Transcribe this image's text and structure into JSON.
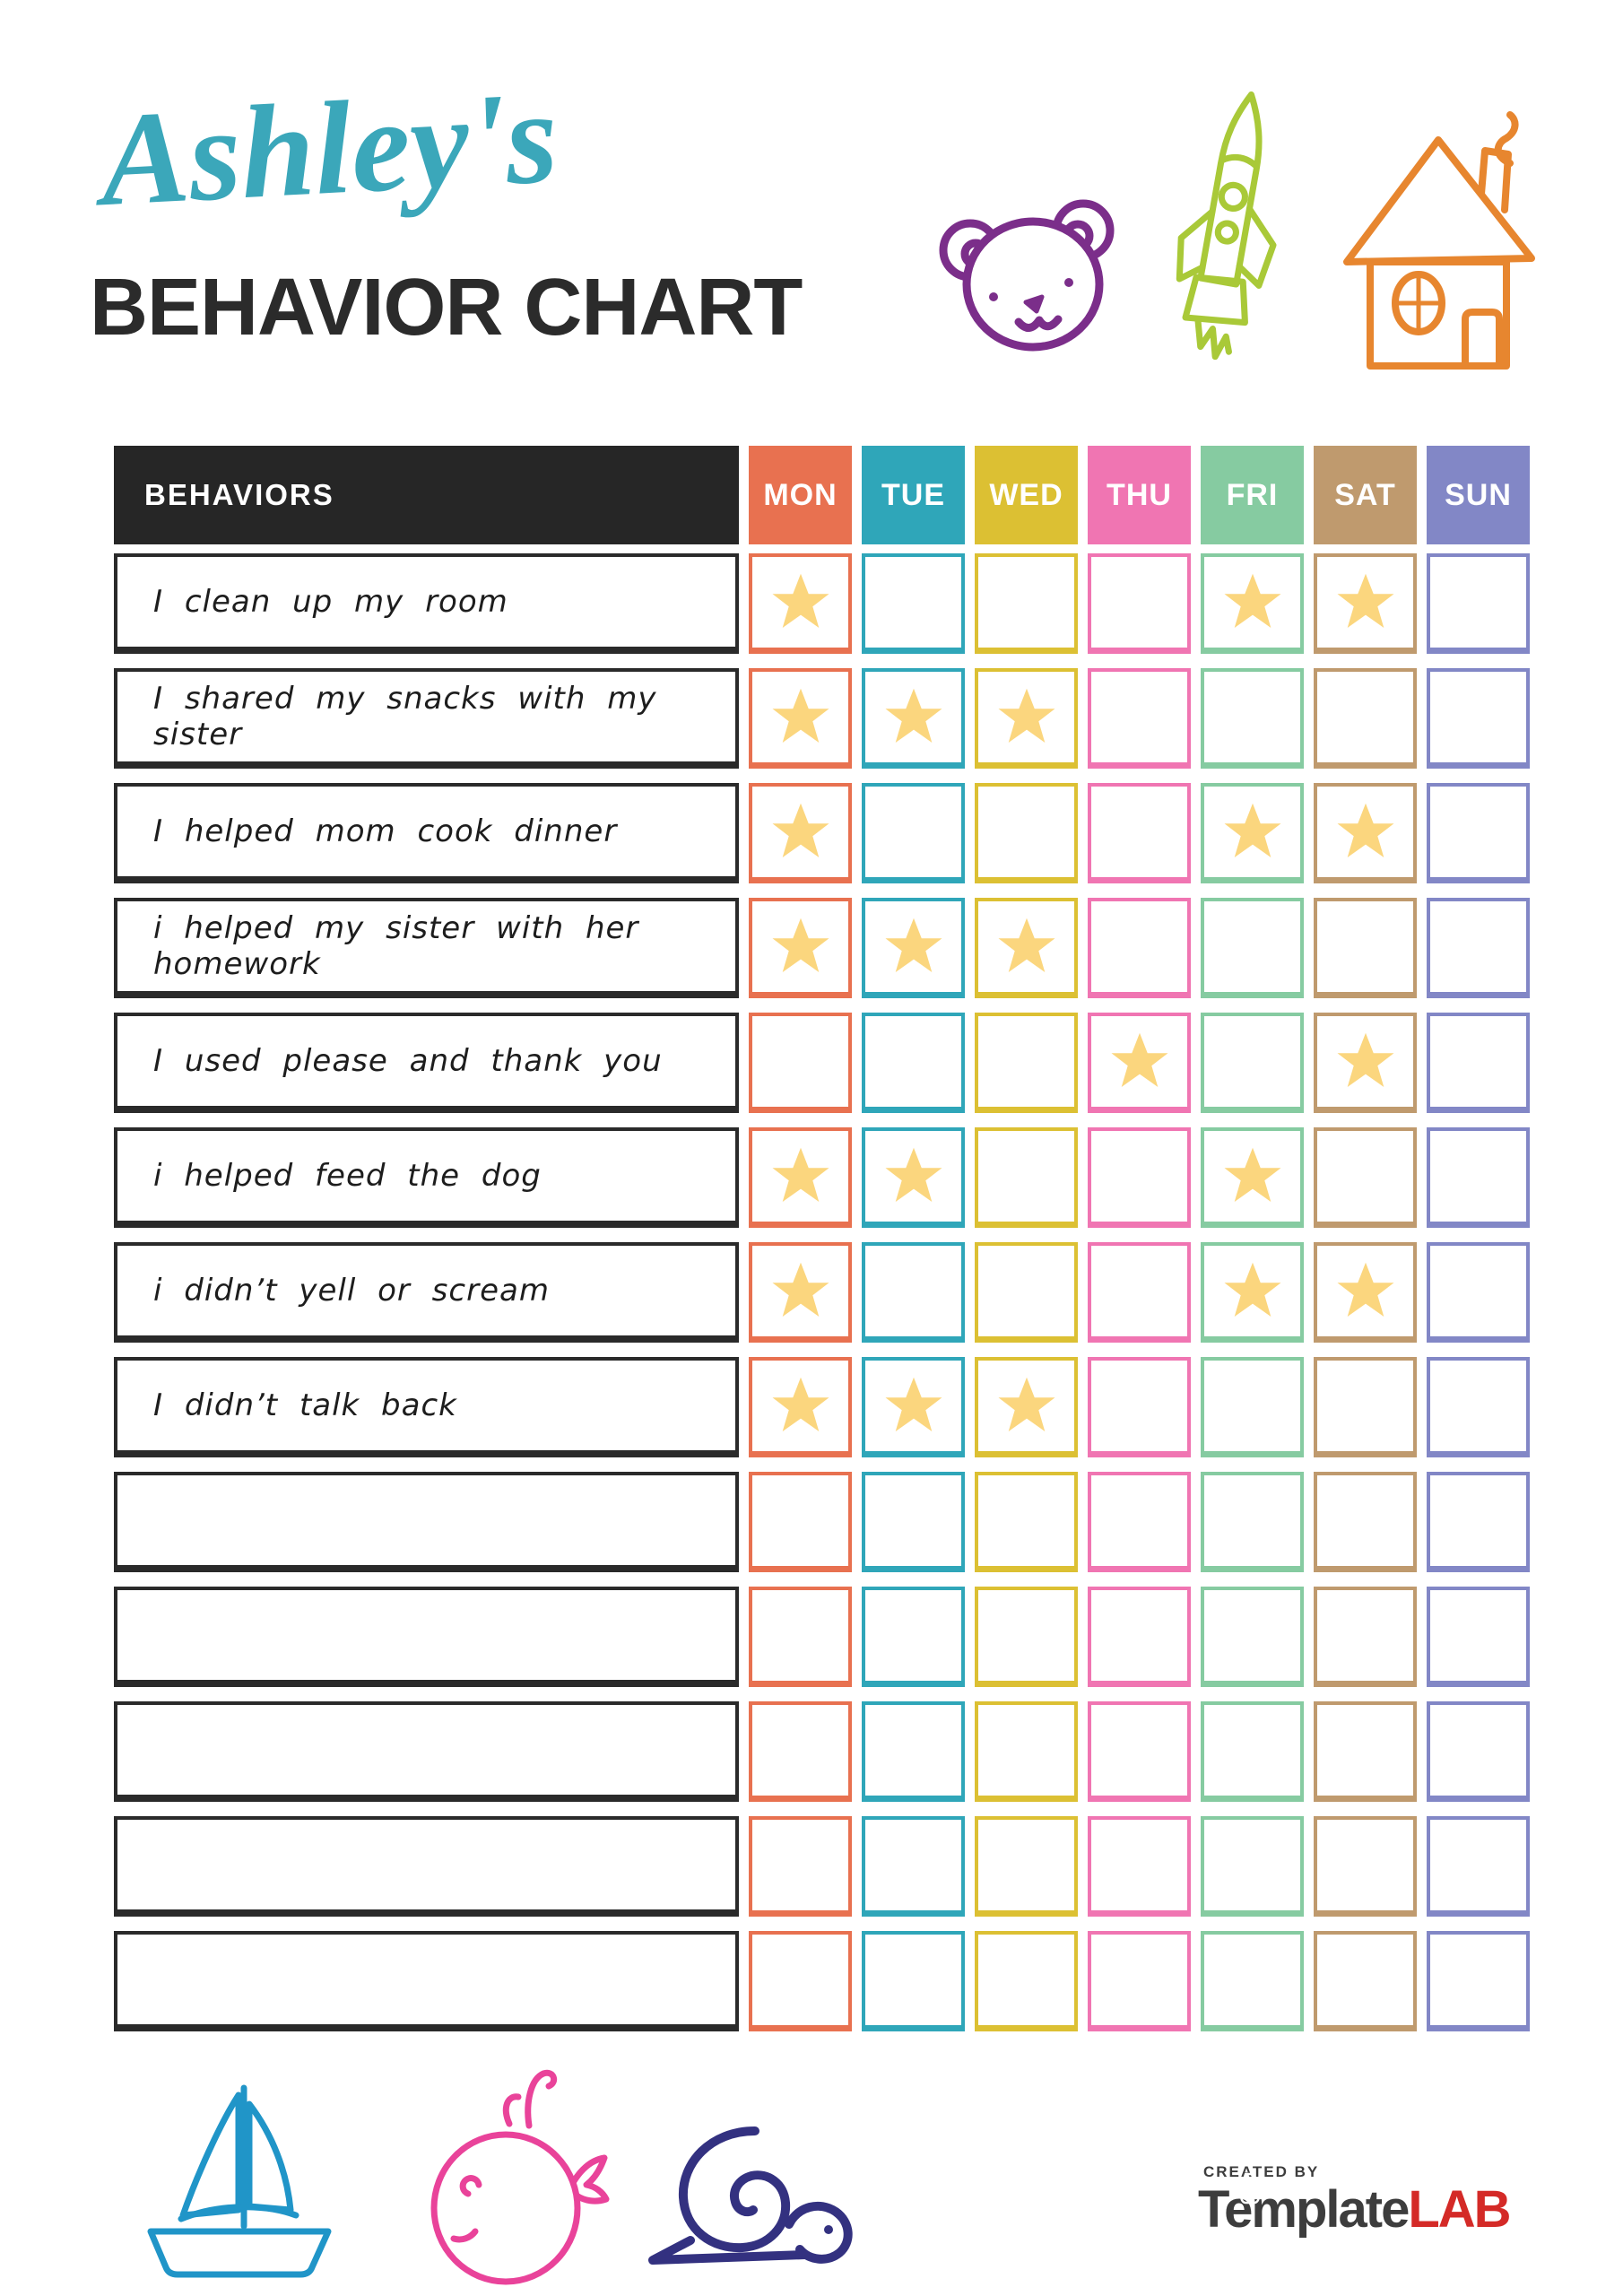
{
  "header": {
    "title_script": "Ashley's",
    "title_script_color": "#3ba7ba",
    "title_main": "BEHAVIOR CHART",
    "title_main_color": "#2b2b2b",
    "icons": [
      {
        "name": "bear-icon",
        "color": "#7b2e8a"
      },
      {
        "name": "rocket-icon",
        "color": "#a9c938"
      },
      {
        "name": "house-icon",
        "color": "#e7862f"
      }
    ]
  },
  "table": {
    "behaviors_header": "BEHAVIORS",
    "behaviors_header_bg": "#262626",
    "behaviors_header_color": "#ffffff",
    "row_border_color": "#2a2a2a",
    "star_color": "#fbd67e",
    "days": [
      {
        "label": "MON",
        "color": "#e87150"
      },
      {
        "label": "TUE",
        "color": "#2fa6b9"
      },
      {
        "label": "WED",
        "color": "#dcc033"
      },
      {
        "label": "THU",
        "color": "#f075b2"
      },
      {
        "label": "FRI",
        "color": "#86cba1"
      },
      {
        "label": "SAT",
        "color": "#bf9a6e"
      },
      {
        "label": "SUN",
        "color": "#8287c6"
      }
    ],
    "rows": [
      {
        "behavior": "I clean up my room",
        "stars": [
          "MON",
          "FRI",
          "SAT"
        ]
      },
      {
        "behavior": "I shared my snacks with my sister",
        "stars": [
          "MON",
          "TUE",
          "WED"
        ]
      },
      {
        "behavior": "I helped mom cook dinner",
        "stars": [
          "MON",
          "FRI",
          "SAT"
        ]
      },
      {
        "behavior": "i helped my sister with her homework",
        "stars": [
          "MON",
          "TUE",
          "WED"
        ]
      },
      {
        "behavior": "I used please and thank you",
        "stars": [
          "THU",
          "SAT"
        ]
      },
      {
        "behavior": "i helped feed the dog",
        "stars": [
          "MON",
          "TUE",
          "FRI"
        ]
      },
      {
        "behavior": "i didn’t yell or scream",
        "stars": [
          "MON",
          "FRI",
          "SAT"
        ]
      },
      {
        "behavior": "I didn’t talk back",
        "stars": [
          "MON",
          "TUE",
          "WED"
        ]
      },
      {
        "behavior": "",
        "stars": []
      },
      {
        "behavior": "",
        "stars": []
      },
      {
        "behavior": "",
        "stars": []
      },
      {
        "behavior": "",
        "stars": []
      },
      {
        "behavior": "",
        "stars": []
      }
    ]
  },
  "footer": {
    "icons": [
      {
        "name": "sailboat-icon",
        "color": "#2095c8"
      },
      {
        "name": "whale-icon",
        "color": "#e9439a"
      },
      {
        "name": "snail-icon",
        "color": "#333180"
      }
    ],
    "logo": {
      "created_by": "CREATED BY",
      "created_by_color": "#3d3d3d",
      "brand_1": "Template",
      "brand_1_color": "#3d3d3d",
      "brand_2": "LAB",
      "brand_2_color": "#d42a27"
    }
  }
}
